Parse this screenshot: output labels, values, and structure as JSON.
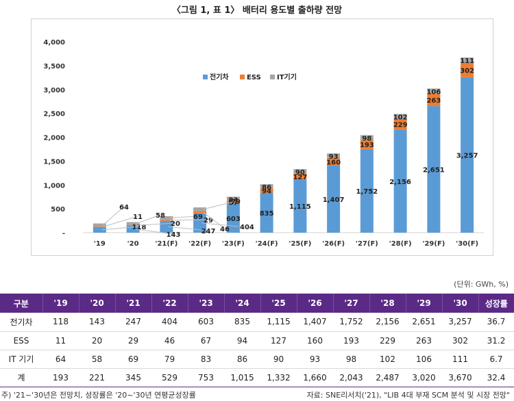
{
  "title": "〈그림 1, 표 1〉 배터리 용도별 출하량 전망",
  "unit_note": "(단위: GWh, %)",
  "footnote": "주) '21~'30년은 전망치, 성장률은 '20~'30년 연평균성장률",
  "source": "자료: SNE리서치('21), \"LIB 4대 부재 SCM 분석 및 시장 전망\"",
  "colors": {
    "ev": "#5b9bd5",
    "ess": "#ed7d31",
    "it": "#a5a5a5",
    "header": "#5b2a86"
  },
  "chart_data": {
    "type": "bar",
    "stacked": true,
    "categories": [
      "'19",
      "'20",
      "'21(F)",
      "'22(F)",
      "'23(F)",
      "'24(F)",
      "'25(F)",
      "'26(F)",
      "'27(F)",
      "'28(F)",
      "'29(F)",
      "'30(F)"
    ],
    "series": [
      {
        "name": "전기차",
        "values": [
          118,
          143,
          247,
          404,
          603,
          835,
          1115,
          1407,
          1752,
          2156,
          2651,
          3257
        ]
      },
      {
        "name": "ESS",
        "values": [
          11,
          20,
          29,
          46,
          67,
          94,
          127,
          160,
          193,
          229,
          263,
          302
        ]
      },
      {
        "name": "IT기기",
        "values": [
          64,
          58,
          69,
          79,
          83,
          86,
          90,
          93,
          98,
          102,
          106,
          111
        ]
      }
    ],
    "ylim": [
      0,
      4000
    ],
    "yticks": [
      0,
      500,
      1000,
      1500,
      2000,
      2500,
      3000,
      3500,
      4000
    ],
    "ytick_labels": [
      "-",
      "500",
      "1,000",
      "1,500",
      "2,000",
      "2,500",
      "3,000",
      "3,500",
      "4,000"
    ],
    "legend_position": "top-left",
    "grid": false,
    "value_labels": {
      "ev": [
        "118",
        "143",
        "247",
        "404",
        "603",
        "835",
        "1,115",
        "1,407",
        "1,752",
        "2,156",
        "2,651",
        "3,257"
      ],
      "ess": [
        "11",
        "20",
        "29",
        "46",
        "67",
        "94",
        "127",
        "160",
        "193",
        "229",
        "263",
        "302"
      ],
      "it": [
        "64",
        "58",
        "69",
        "79",
        "83",
        "86",
        "90",
        "93",
        "98",
        "102",
        "106",
        "111"
      ]
    }
  },
  "table": {
    "headers": [
      "구분",
      "'19",
      "'20",
      "'21",
      "'22",
      "'23",
      "'24",
      "'25",
      "'26",
      "'27",
      "'28",
      "'29",
      "'30",
      "성장률"
    ],
    "rows": [
      [
        "전기차",
        "118",
        "143",
        "247",
        "404",
        "603",
        "835",
        "1,115",
        "1,407",
        "1,752",
        "2,156",
        "2,651",
        "3,257",
        "36.7"
      ],
      [
        "ESS",
        "11",
        "20",
        "29",
        "46",
        "67",
        "94",
        "127",
        "160",
        "193",
        "229",
        "263",
        "302",
        "31.2"
      ],
      [
        "IT 기기",
        "64",
        "58",
        "69",
        "79",
        "83",
        "86",
        "90",
        "93",
        "98",
        "102",
        "106",
        "111",
        "6.7"
      ],
      [
        "계",
        "193",
        "221",
        "345",
        "529",
        "753",
        "1,015",
        "1,332",
        "1,660",
        "2,043",
        "2,487",
        "3,020",
        "3,670",
        "32.4"
      ]
    ]
  }
}
